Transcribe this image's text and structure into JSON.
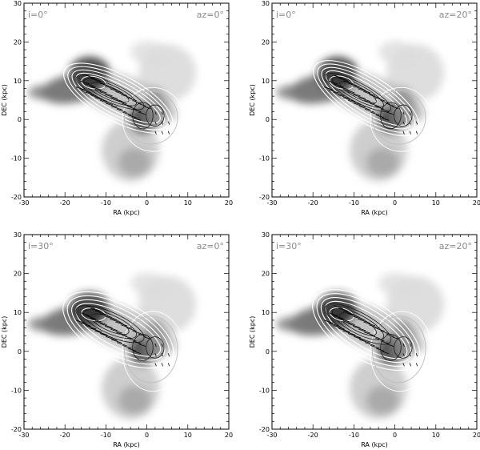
{
  "chart_data": [
    {
      "type": "contour",
      "xlabel": "RA (kpc)",
      "ylabel": "DEC (kpc)",
      "xlim": [
        -30,
        20
      ],
      "ylim": [
        -20,
        30
      ],
      "xticks": [
        -30,
        -20,
        -10,
        0,
        10,
        20
      ],
      "yticks": [
        -20,
        -10,
        0,
        10,
        20,
        30
      ],
      "annotations": {
        "incl": "i=0°",
        "az": "az=0°"
      },
      "variant": 0
    },
    {
      "type": "contour",
      "xlabel": "RA (kpc)",
      "ylabel": "DEC (kpc)",
      "xlim": [
        -30,
        20
      ],
      "ylim": [
        -20,
        30
      ],
      "xticks": [
        -30,
        -20,
        -10,
        0,
        10,
        20
      ],
      "yticks": [
        -20,
        -10,
        0,
        10,
        20,
        30
      ],
      "annotations": {
        "incl": "i=0°",
        "az": "az=20°"
      },
      "variant": 1
    },
    {
      "type": "contour",
      "xlabel": "RA (kpc)",
      "ylabel": "DEC (kpc)",
      "xlim": [
        -30,
        20
      ],
      "ylim": [
        -20,
        30
      ],
      "xticks": [
        -30,
        -20,
        -10,
        0,
        10,
        20
      ],
      "yticks": [
        -20,
        -10,
        0,
        10,
        20,
        30
      ],
      "annotations": {
        "incl": "i=30°",
        "az": "az=0°"
      },
      "variant": 2
    },
    {
      "type": "contour",
      "xlabel": "RA (kpc)",
      "ylabel": "DEC (kpc)",
      "xlim": [
        -30,
        20
      ],
      "ylim": [
        -20,
        30
      ],
      "xticks": [
        -30,
        -20,
        -10,
        0,
        10,
        20
      ],
      "yticks": [
        -20,
        -10,
        0,
        10,
        20,
        30
      ],
      "annotations": {
        "incl": "i=30°",
        "az": "az=20°"
      },
      "variant": 3
    }
  ]
}
